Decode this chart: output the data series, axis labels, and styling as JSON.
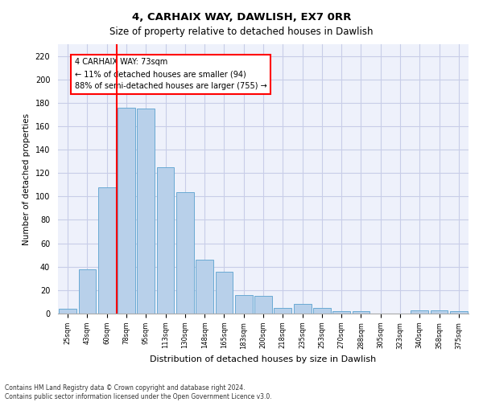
{
  "title1": "4, CARHAIX WAY, DAWLISH, EX7 0RR",
  "title2": "Size of property relative to detached houses in Dawlish",
  "xlabel": "Distribution of detached houses by size in Dawlish",
  "ylabel": "Number of detached properties",
  "categories": [
    "25sqm",
    "43sqm",
    "60sqm",
    "78sqm",
    "95sqm",
    "113sqm",
    "130sqm",
    "148sqm",
    "165sqm",
    "183sqm",
    "200sqm",
    "218sqm",
    "235sqm",
    "253sqm",
    "270sqm",
    "288sqm",
    "305sqm",
    "323sqm",
    "340sqm",
    "358sqm",
    "375sqm"
  ],
  "values": [
    4,
    38,
    108,
    176,
    175,
    125,
    104,
    46,
    36,
    16,
    15,
    5,
    8,
    5,
    2,
    2,
    0,
    0,
    3,
    3,
    2
  ],
  "bar_color": "#b8d0ea",
  "bar_edge_color": "#6aaad4",
  "vline_color": "red",
  "vline_x": 2.0,
  "annotation_text": "4 CARHAIX WAY: 73sqm\n← 11% of detached houses are smaller (94)\n88% of semi-detached houses are larger (755) →",
  "ylim": [
    0,
    230
  ],
  "yticks": [
    0,
    20,
    40,
    60,
    80,
    100,
    120,
    140,
    160,
    180,
    200,
    220
  ],
  "footer1": "Contains HM Land Registry data © Crown copyright and database right 2024.",
  "footer2": "Contains public sector information licensed under the Open Government Licence v3.0.",
  "bg_color": "#eef1fb",
  "grid_color": "#c8cde8"
}
